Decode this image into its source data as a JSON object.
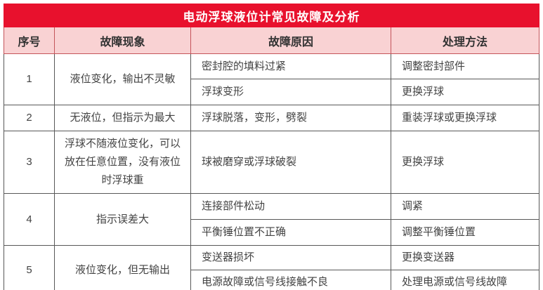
{
  "title": "电动浮球液位计常见故障及分析",
  "columns": [
    "序号",
    "故障现象",
    "故障原因",
    "处理方法"
  ],
  "rows": [
    {
      "no": "1",
      "phenomenon": "液位变化，输出不灵敏",
      "details": [
        {
          "cause": "密封腔的填料过紧",
          "solution": "调整密封部件"
        },
        {
          "cause": "浮球变形",
          "solution": "更换浮球"
        }
      ]
    },
    {
      "no": "2",
      "phenomenon": "无液位，但指示为最大",
      "details": [
        {
          "cause": "浮球脱落，变形，劈裂",
          "solution": "重装浮球或更换浮球"
        }
      ]
    },
    {
      "no": "3",
      "phenomenon": "浮球不随液位变化，可以放在任意位置，没有液位时浮球重",
      "details": [
        {
          "cause": "球被磨穿或浮球破裂",
          "solution": "更换浮球"
        }
      ]
    },
    {
      "no": "4",
      "phenomenon": "指示误差大",
      "details": [
        {
          "cause": "连接部件松动",
          "solution": "调紧"
        },
        {
          "cause": "平衡锤位置不正确",
          "solution": "调整平衡锤位置"
        }
      ]
    },
    {
      "no": "5",
      "phenomenon": "液位变化，但无输出",
      "details": [
        {
          "cause": "变送器损坏",
          "solution": "更换变送器"
        },
        {
          "cause": "电源故障或信号线接触不良",
          "solution": "处理电源或信号线故障"
        }
      ]
    }
  ],
  "colors": {
    "title-bg": "#e8112d",
    "title-text": "#ffffff",
    "header-bg": "#f9d2d3",
    "header-border": "#c4545a",
    "header-text": "#323232",
    "body-border": "#585858",
    "body-text": "#434343",
    "page-bg": "#ffffff"
  }
}
